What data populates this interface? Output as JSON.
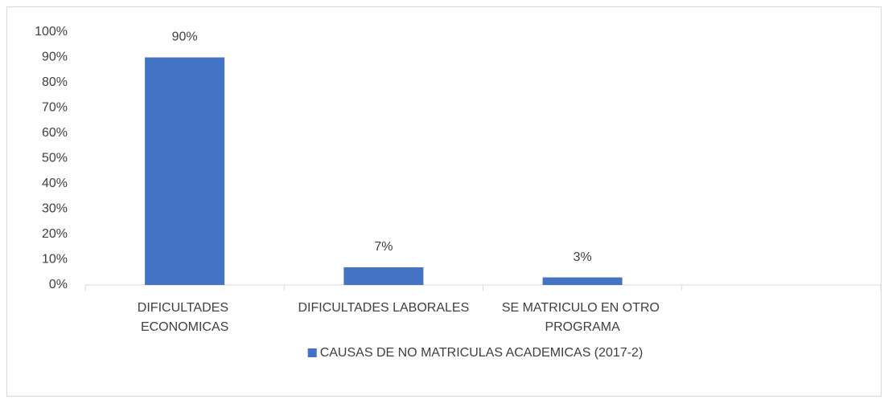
{
  "chart_data": {
    "type": "bar",
    "categories": [
      "DIFICULTADES ECONOMICAS",
      "DIFICULTADES LABORALES",
      "SE MATRICULO EN OTRO PROGRAMA",
      null
    ],
    "series": [
      {
        "name": "CAUSAS DE NO MATRICULAS ACADEMICAS (2017-2)",
        "color": "#4472c4",
        "values": [
          90,
          7,
          3,
          null
        ],
        "value_labels": [
          "90%",
          "7%",
          "3%",
          null
        ]
      }
    ],
    "ylim": [
      0,
      100
    ],
    "yticks": [
      {
        "value": 0,
        "label": "0%"
      },
      {
        "value": 10,
        "label": "10%"
      },
      {
        "value": 20,
        "label": "20%"
      },
      {
        "value": 30,
        "label": "30%"
      },
      {
        "value": 40,
        "label": "40%"
      },
      {
        "value": 50,
        "label": "50%"
      },
      {
        "value": 60,
        "label": "60%"
      },
      {
        "value": 70,
        "label": "70%"
      },
      {
        "value": 80,
        "label": "80%"
      },
      {
        "value": 90,
        "label": "90%"
      },
      {
        "value": 100,
        "label": "100%"
      }
    ],
    "grid": false,
    "legend": "bottom"
  }
}
